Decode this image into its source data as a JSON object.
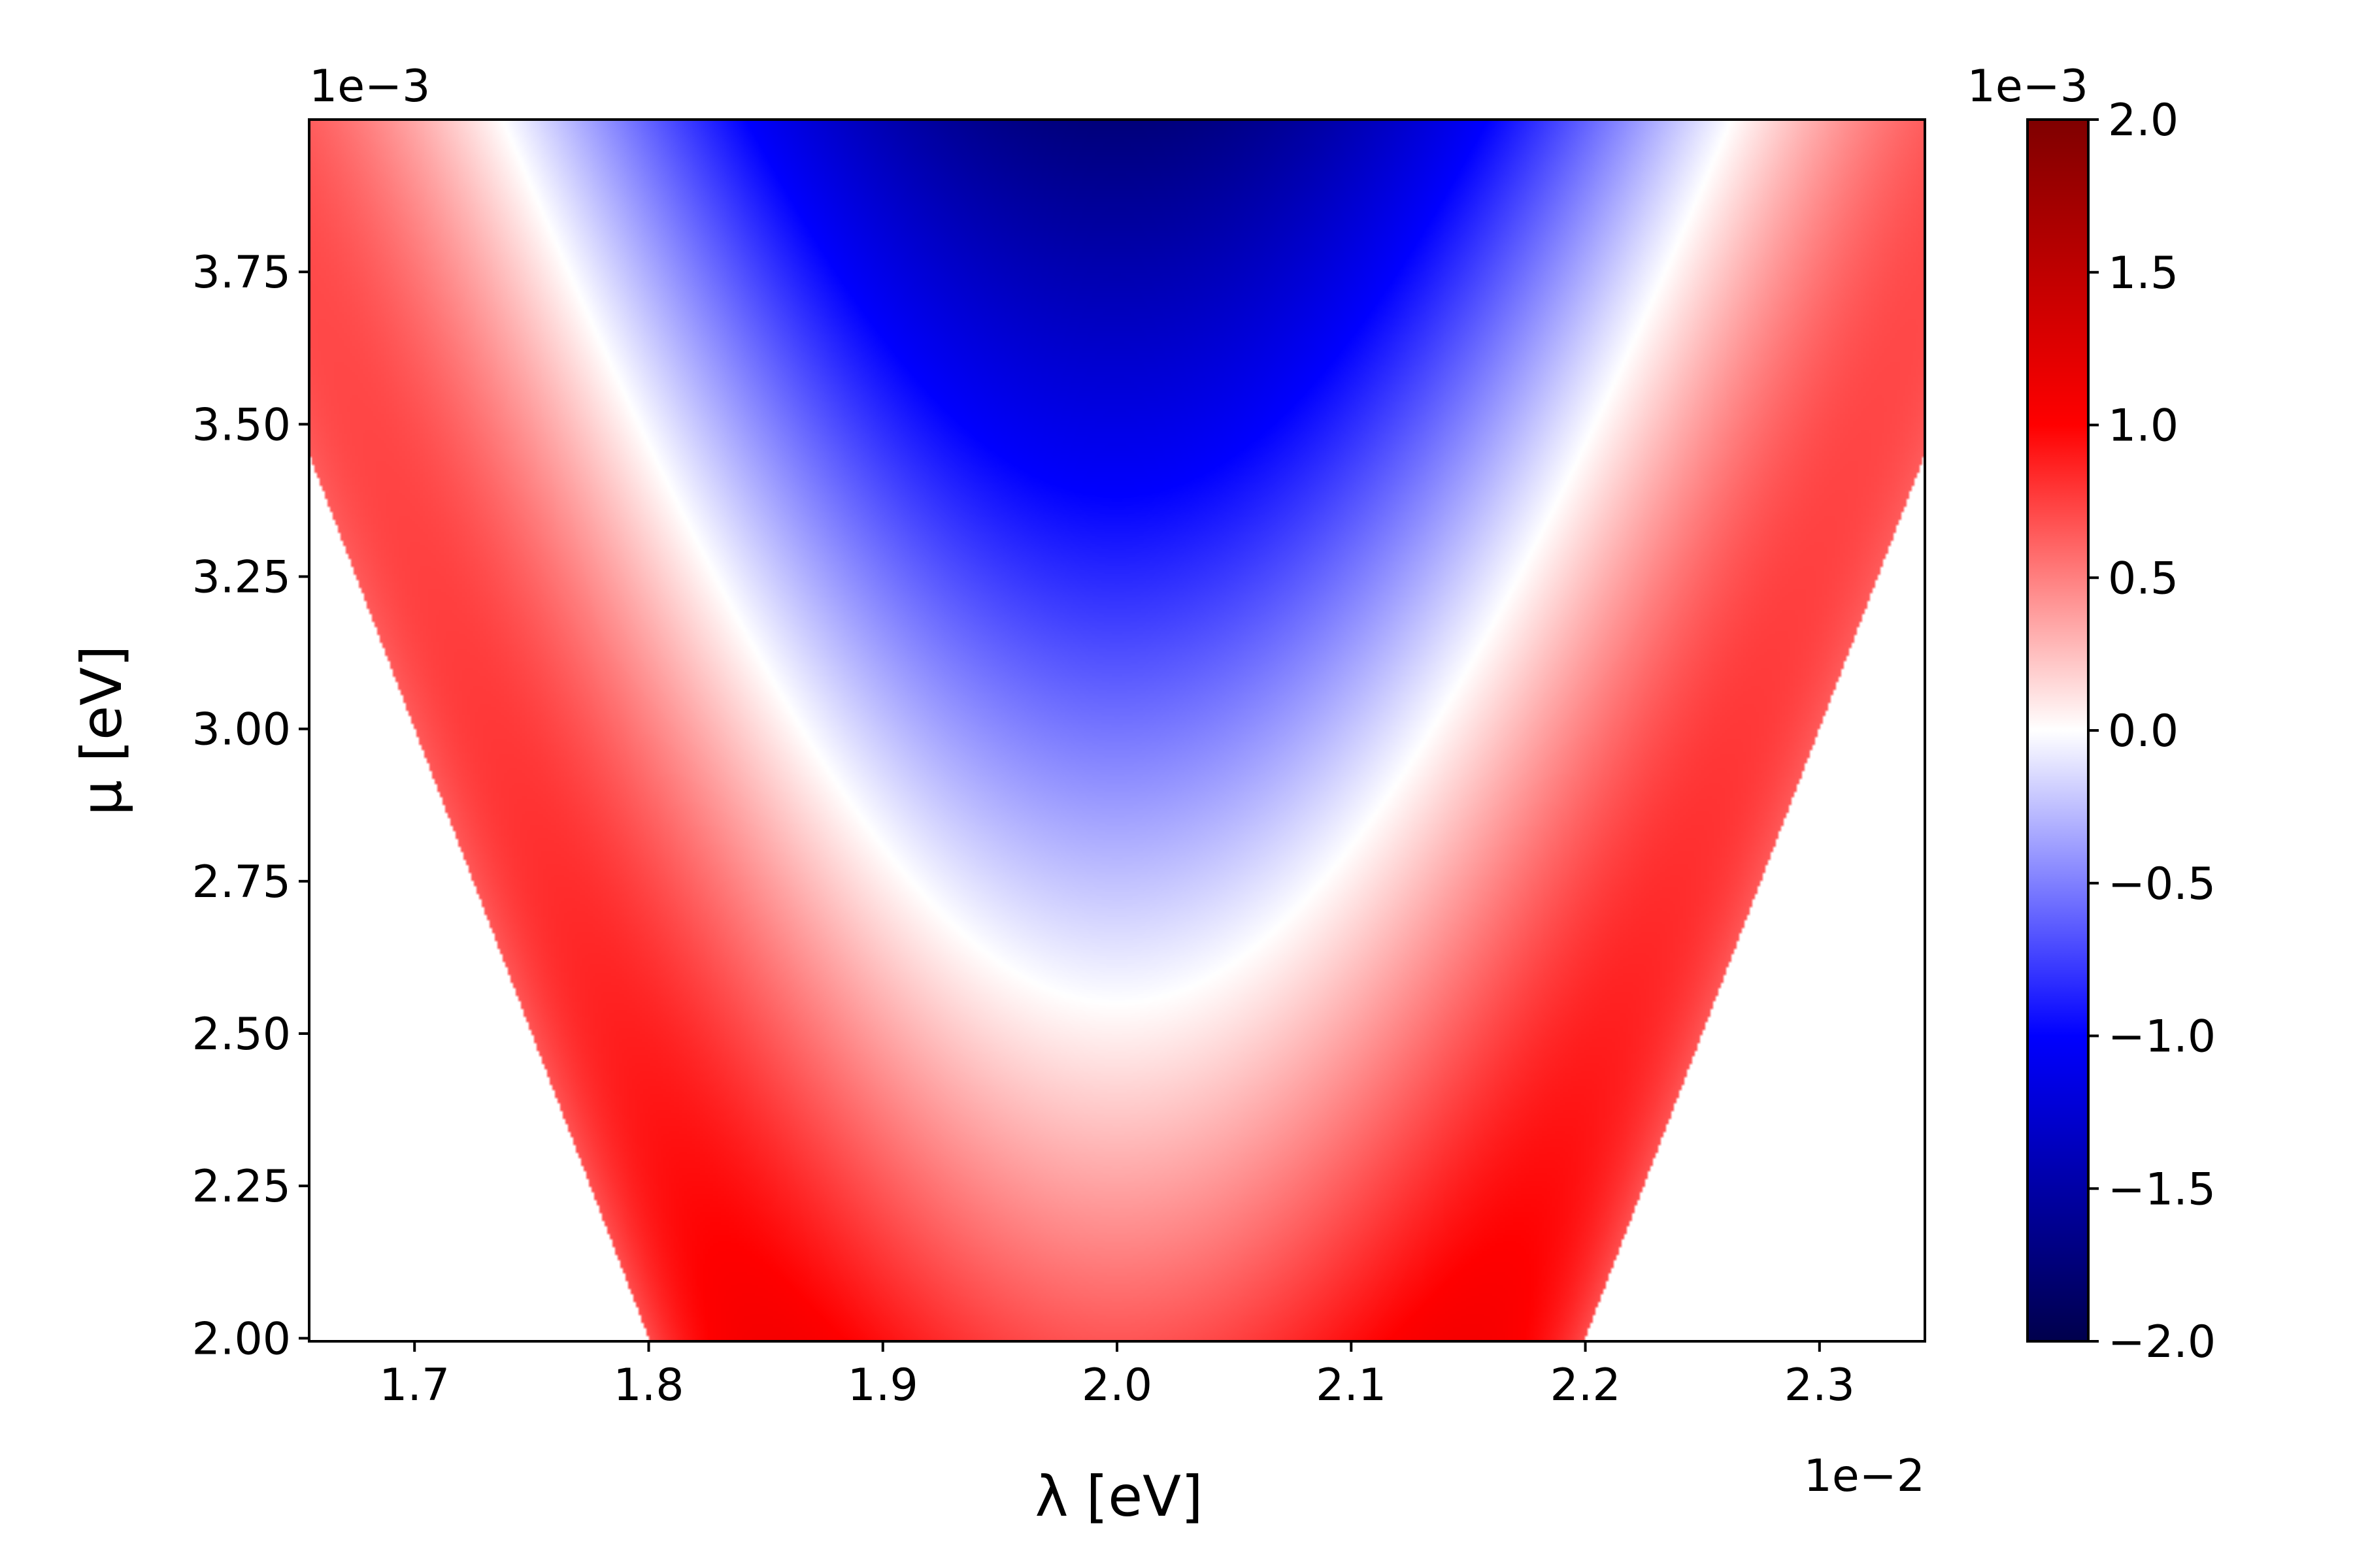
{
  "chart_data": {
    "type": "heatmap",
    "title": "",
    "xlabel": "λ [eV]",
    "ylabel": "μ [eV]",
    "x_offset_text": "1e−2",
    "y_offset_text": "1e−3",
    "xlim": [
      0.01655,
      0.02345
    ],
    "ylim": [
      0.001995,
      0.004
    ],
    "x_ticks": [
      0.017,
      0.018,
      0.019,
      0.02,
      0.021,
      0.022,
      0.023
    ],
    "x_tick_labels": [
      "1.7",
      "1.8",
      "1.9",
      "2.0",
      "2.1",
      "2.2",
      "2.3"
    ],
    "y_ticks": [
      0.002,
      0.00225,
      0.0025,
      0.00275,
      0.003,
      0.00325,
      0.0035,
      0.00375
    ],
    "y_tick_labels": [
      "2.00",
      "2.25",
      "2.50",
      "2.75",
      "3.00",
      "3.25",
      "3.50",
      "3.75"
    ],
    "grid": false,
    "colormap": "seismic",
    "colormap_colors": [
      "#00004c",
      "#0000ff",
      "#ffffff",
      "#ff0000",
      "#7f0000"
    ],
    "colorbar": {
      "offset_text": "1e−3",
      "vmin": -0.002,
      "vmax": 0.002,
      "ticks": [
        0.002,
        0.0015,
        0.001,
        0.0005,
        0.0,
        -0.0005,
        -0.001,
        -0.0015,
        -0.002
      ],
      "tick_labels": [
        "2.0",
        "1.5",
        "1.0",
        "0.5",
        "0.0",
        "−0.5",
        "−1.0",
        "−1.5",
        "−2.0"
      ]
    },
    "domain": {
      "description_of_support": "|λ − λ0| ≤ μ",
      "lambda_center": 0.02,
      "valid_region": "wedge opening upward"
    },
    "field_samples": {
      "zero_contour": [
        {
          "x": 0.01665,
          "y": 0.004
        },
        {
          "x": 0.018,
          "y": 0.00329
        },
        {
          "x": 0.019,
          "y": 0.00267
        },
        {
          "x": 0.02,
          "y": 0.00255
        },
        {
          "x": 0.021,
          "y": 0.00267
        },
        {
          "x": 0.022,
          "y": 0.00329
        },
        {
          "x": 0.02335,
          "y": 0.004
        }
      ],
      "center_column": [
        {
          "y": 0.002,
          "value": 0.001
        },
        {
          "y": 0.0025,
          "value": 5e-05
        },
        {
          "y": 0.003,
          "value": -0.0007
        },
        {
          "y": 0.0035,
          "value": -0.0012
        },
        {
          "y": 0.004,
          "value": -0.0019
        }
      ],
      "edge_values": [
        {
          "x": 0.0185,
          "y": 0.002,
          "value": 0.0005
        },
        {
          "x": 0.01665,
          "y": 0.004,
          "value": 0.0
        }
      ]
    }
  }
}
